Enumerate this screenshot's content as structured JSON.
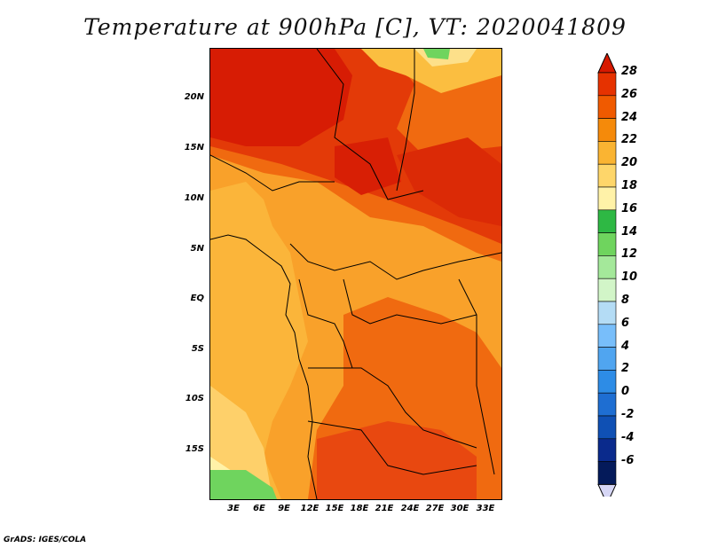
{
  "title": "Temperature at 900hPa [C], VT: 2020041809",
  "footer": "GrADS: IGES/COLA",
  "map": {
    "lat_labels": [
      "20N",
      "15N",
      "10N",
      "5N",
      "EQ",
      "5S",
      "10S",
      "15S"
    ],
    "lon_labels": [
      "3E",
      "6E",
      "9E",
      "12E",
      "15E",
      "18E",
      "21E",
      "24E",
      "27E",
      "30E",
      "33E"
    ]
  },
  "colorbar": {
    "labels": [
      "28",
      "26",
      "24",
      "22",
      "20",
      "18",
      "16",
      "14",
      "12",
      "10",
      "8",
      "6",
      "4",
      "2",
      "0",
      "-2",
      "-4",
      "-6"
    ],
    "colors": [
      "#d71900",
      "#e63200",
      "#f05a00",
      "#f58a0a",
      "#fab432",
      "#fed66a",
      "#fff2a8",
      "#2eb844",
      "#6fd45e",
      "#a4e89a",
      "#d2f5c8",
      "#b4dcf5",
      "#78befa",
      "#50a5f0",
      "#2d8ce6",
      "#1e6ed2",
      "#0f50b4",
      "#0a2a8c",
      "#041a5a",
      "#d6d6f5"
    ]
  }
}
